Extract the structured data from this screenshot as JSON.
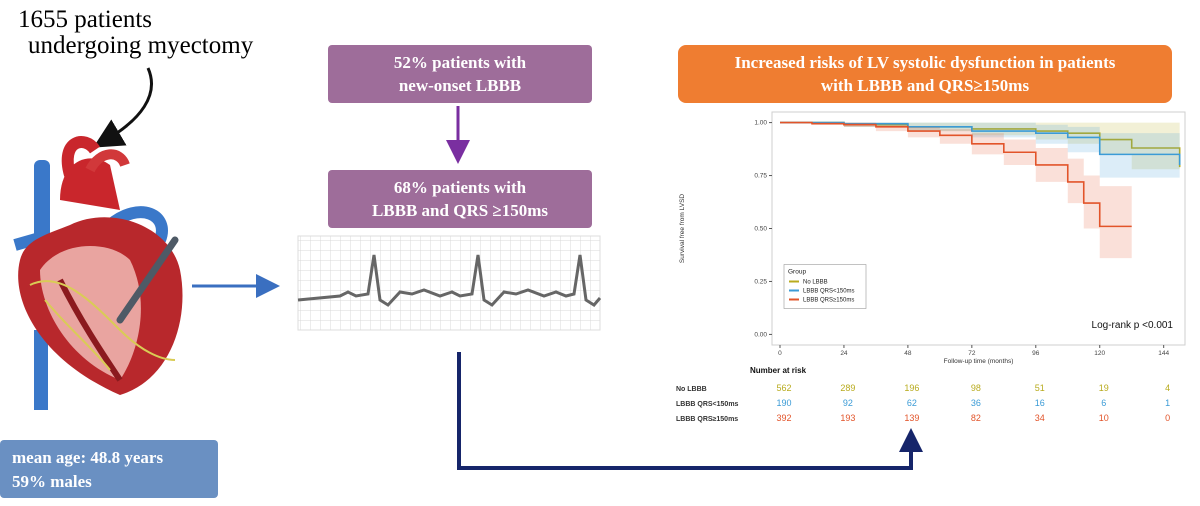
{
  "intro": {
    "line1": "1655 patients",
    "line2": "undergoing myectomy"
  },
  "box1": {
    "line1": "52% patients with",
    "line2": "new-onset LBBB"
  },
  "box2": {
    "line1": "68% patients with",
    "line2": "LBBB and QRS ≥150ms"
  },
  "demographics": {
    "line1": "mean age: 48.8 years",
    "line2": "59% males"
  },
  "result": {
    "line1": "Increased risks of LV systolic dysfunction in patients",
    "line2": "with LBBB and QRS≥150ms"
  },
  "chart_data": {
    "type": "line",
    "step": true,
    "bands": true,
    "ylabel": "Survival free from LVSD",
    "xlabel": "Follow-up time (months)",
    "xlim": [
      -3,
      152
    ],
    "xticks": [
      0,
      24,
      48,
      72,
      96,
      120,
      144
    ],
    "ylim": [
      -0.05,
      1.05
    ],
    "yticks": [
      {
        "value": 0,
        "label": "0.00"
      },
      {
        "value": 0.25,
        "label": "0.25"
      },
      {
        "value": 0.5,
        "label": "0.50"
      },
      {
        "value": 0.75,
        "label": "0.75"
      },
      {
        "value": 1,
        "label": "1.00"
      }
    ],
    "legend_title": "Group",
    "legend_position": "bottom-left",
    "annotation": "Log-rank p <0.001",
    "series": [
      {
        "name": "No LBBB",
        "color": "#b8ab1e",
        "x": [
          0,
          24,
          48,
          72,
          96,
          108,
          120,
          132,
          150
        ],
        "values": [
          1,
          0.99,
          0.98,
          0.97,
          0.96,
          0.95,
          0.92,
          0.88,
          0.79
        ],
        "lower": [
          1,
          0.98,
          0.96,
          0.94,
          0.92,
          0.9,
          0.85,
          0.78,
          0.6
        ],
        "upper": [
          1,
          1,
          1,
          1,
          1,
          1,
          1,
          1,
          1
        ]
      },
      {
        "name": "LBBB QRS<150ms",
        "color": "#3b9bd6",
        "x": [
          0,
          24,
          48,
          72,
          96,
          108,
          120,
          150
        ],
        "values": [
          1,
          0.995,
          0.98,
          0.96,
          0.95,
          0.93,
          0.85,
          0.8
        ],
        "lower": [
          1,
          0.98,
          0.96,
          0.93,
          0.9,
          0.86,
          0.74,
          0.6
        ],
        "upper": [
          1,
          1,
          1,
          1,
          0.99,
          0.98,
          0.95,
          0.95
        ]
      },
      {
        "name": "LBBB QRS≥150ms",
        "color": "#e2542a",
        "x": [
          0,
          12,
          24,
          36,
          48,
          60,
          72,
          84,
          96,
          108,
          114,
          120,
          132
        ],
        "values": [
          1,
          0.995,
          0.99,
          0.98,
          0.96,
          0.94,
          0.9,
          0.86,
          0.8,
          0.72,
          0.62,
          0.51,
          0.51
        ],
        "lower": [
          1,
          0.99,
          0.98,
          0.96,
          0.93,
          0.9,
          0.85,
          0.8,
          0.72,
          0.62,
          0.5,
          0.36,
          0.36
        ],
        "upper": [
          1,
          1,
          1,
          0.99,
          0.98,
          0.97,
          0.95,
          0.92,
          0.88,
          0.83,
          0.75,
          0.7,
          0.7
        ]
      }
    ],
    "risk_table": {
      "title": "Number at risk",
      "rows": [
        {
          "name": "No LBBB",
          "values": [
            562,
            289,
            196,
            98,
            51,
            19,
            4
          ]
        },
        {
          "name": "LBBB QRS<150ms",
          "values": [
            190,
            92,
            62,
            36,
            16,
            6,
            1
          ]
        },
        {
          "name": "LBBB QRS≥150ms",
          "values": [
            392,
            193,
            139,
            82,
            34,
            10,
            0
          ]
        }
      ]
    }
  }
}
